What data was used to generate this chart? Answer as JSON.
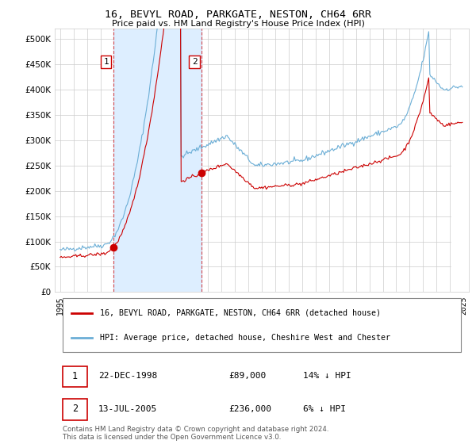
{
  "title": "16, BEVYL ROAD, PARKGATE, NESTON, CH64 6RR",
  "subtitle": "Price paid vs. HM Land Registry's House Price Index (HPI)",
  "legend_line1": "16, BEVYL ROAD, PARKGATE, NESTON, CH64 6RR (detached house)",
  "legend_line2": "HPI: Average price, detached house, Cheshire West and Chester",
  "footnote": "Contains HM Land Registry data © Crown copyright and database right 2024.\nThis data is licensed under the Open Government Licence v3.0.",
  "sale1_date": "22-DEC-1998",
  "sale1_price": "£89,000",
  "sale1_hpi": "14% ↓ HPI",
  "sale2_date": "13-JUL-2005",
  "sale2_price": "£236,000",
  "sale2_hpi": "6% ↓ HPI",
  "sale1_x": 1998.97,
  "sale1_y": 89000,
  "sale2_x": 2005.54,
  "sale2_y": 236000,
  "hpi_color": "#6baed6",
  "sale_color": "#cc0000",
  "shade_color": "#ddeeff",
  "ylim_min": 0,
  "ylim_max": 520000,
  "yticks": [
    0,
    50000,
    100000,
    150000,
    200000,
    250000,
    300000,
    350000,
    400000,
    450000,
    500000
  ],
  "xlim_min": 1994.6,
  "xlim_max": 2025.4,
  "background_color": "#ffffff",
  "grid_color": "#cccccc"
}
